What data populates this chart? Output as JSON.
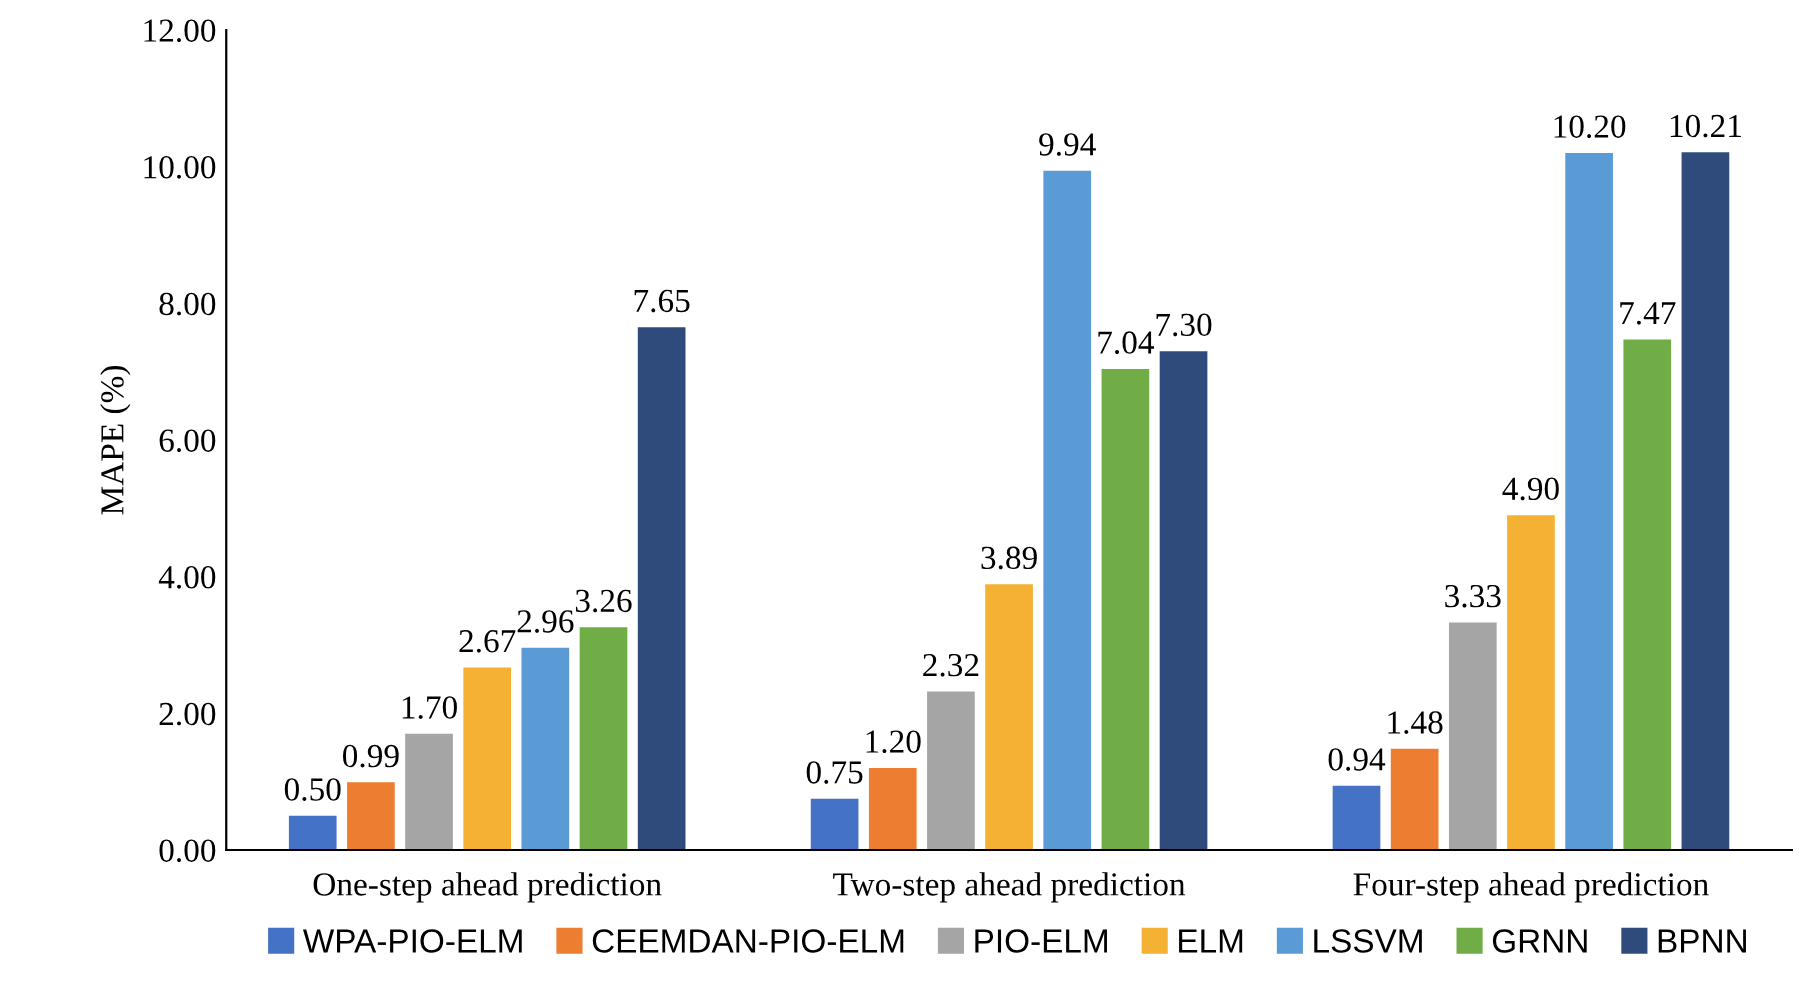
{
  "chart_data": {
    "type": "bar",
    "ylabel": "MAPE (%)",
    "categories": [
      "One-step ahead prediction",
      "Two-step ahead prediction",
      "Four-step ahead prediction"
    ],
    "series": [
      {
        "name": "WPA-PIO-ELM",
        "color": "#4472c4",
        "values": [
          0.5,
          0.75,
          0.94
        ],
        "value_labels": [
          "0.50",
          "0.75",
          "0.94"
        ]
      },
      {
        "name": "CEEMDAN-PIO-ELM",
        "color": "#ed7d31",
        "values": [
          0.99,
          1.2,
          1.48
        ],
        "value_labels": [
          "0.99",
          "1.20",
          "1.48"
        ]
      },
      {
        "name": "PIO-ELM",
        "color": "#a5a5a5",
        "values": [
          1.7,
          2.32,
          3.33
        ],
        "value_labels": [
          "1.70",
          "2.32",
          "3.33"
        ]
      },
      {
        "name": "ELM",
        "color": "#f4b133",
        "values": [
          2.67,
          3.89,
          4.9
        ],
        "value_labels": [
          "2.67",
          "3.89",
          "4.90"
        ]
      },
      {
        "name": "LSSVM",
        "color": "#5b9bd5",
        "values": [
          2.96,
          9.94,
          10.2
        ],
        "value_labels": [
          "2.96",
          "9.94",
          "10.20"
        ]
      },
      {
        "name": "GRNN",
        "color": "#70ad47",
        "values": [
          3.26,
          7.04,
          7.47
        ],
        "value_labels": [
          "3.26",
          "7.04",
          "7.47"
        ]
      },
      {
        "name": "BPNN",
        "color": "#2f4b7c",
        "values": [
          7.65,
          7.3,
          10.21
        ],
        "value_labels": [
          "7.65",
          "7.30",
          "10.21"
        ]
      }
    ],
    "ylim": [
      0,
      12
    ],
    "yticks": [
      {
        "value": 0,
        "label": "0.00"
      },
      {
        "value": 2,
        "label": "2.00"
      },
      {
        "value": 4,
        "label": "4.00"
      },
      {
        "value": 6,
        "label": "6.00"
      },
      {
        "value": 8,
        "label": "8.00"
      },
      {
        "value": 10,
        "label": "10.00"
      },
      {
        "value": 12,
        "label": "12.00"
      }
    ],
    "grid": false,
    "legend": "bottom"
  }
}
